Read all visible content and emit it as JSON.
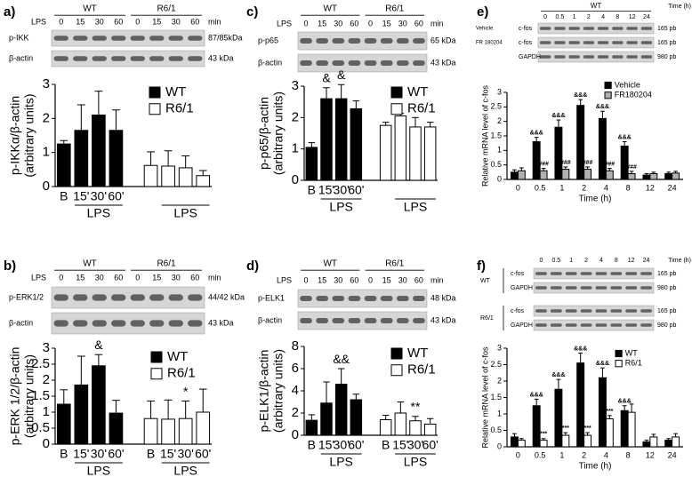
{
  "chart_data": [
    {
      "type": "bar",
      "panel": "a)",
      "blot": {
        "row_label": "LPS",
        "groups": [
          "WT",
          "R6/1"
        ],
        "times": [
          "0",
          "15",
          "30",
          "60",
          "0",
          "15",
          "30",
          "60"
        ],
        "time_unit": "min",
        "sets": [
          {
            "bands": [
              {
                "name": "p-IKK",
                "size": "87/85kDa"
              },
              {
                "name": "β-actin",
                "size": "43 kDa"
              }
            ]
          }
        ]
      },
      "ylabel": [
        "p-IKKα/β-actin",
        "(arbitrary units)"
      ],
      "categories": [
        "B",
        "15'",
        "30'",
        "60'",
        null,
        null,
        null,
        null
      ],
      "group_labels": [
        "LPS",
        "LPS"
      ],
      "ylim": [
        0,
        3
      ],
      "yticks": [
        0,
        1,
        2,
        3
      ],
      "series": [
        {
          "name": "WT",
          "color": "#000000",
          "values": [
            1.25,
            1.65,
            2.1,
            1.65,
            null,
            null,
            null,
            null
          ],
          "errors": [
            0.1,
            0.75,
            0.7,
            0.6,
            null,
            null,
            null,
            null
          ]
        },
        {
          "name": "R6/1",
          "color": "#ffffff",
          "values": [
            null,
            null,
            null,
            null,
            0.62,
            0.6,
            0.55,
            0.32
          ],
          "errors": [
            null,
            null,
            null,
            null,
            0.4,
            0.45,
            0.35,
            0.15
          ]
        }
      ]
    },
    {
      "type": "bar",
      "panel": "b)",
      "blot": {
        "row_label": "LPS",
        "groups": [
          "WT",
          "R6/1"
        ],
        "times": [
          "0",
          "15",
          "30",
          "60",
          "0",
          "15",
          "30",
          "60"
        ],
        "time_unit": "min",
        "sets": [
          {
            "bands": [
              {
                "name": "p-ERK1/2",
                "size": "44/42 kDa"
              },
              {
                "name": "β-actin",
                "size": "43 kDa"
              }
            ]
          }
        ]
      },
      "ylabel": [
        "p-ERK 1/2/β-actin",
        "(arbitrary units)"
      ],
      "categories": [
        "B",
        "15'",
        "30'",
        "60'",
        "B",
        "15'",
        "30'",
        "60'"
      ],
      "group_labels": [
        "LPS",
        "LPS"
      ],
      "ylim": [
        0,
        3
      ],
      "yticks": [
        0,
        0.5,
        1,
        1.5,
        2,
        2.5,
        3
      ],
      "series": [
        {
          "name": "WT",
          "color": "#000000",
          "values": [
            1.25,
            1.85,
            2.45,
            0.97,
            null,
            null,
            null,
            null
          ],
          "errors": [
            0.45,
            0.9,
            0.35,
            0.4,
            null,
            null,
            null,
            null
          ],
          "significance": [
            null,
            null,
            "&",
            null,
            null,
            null,
            null,
            null
          ]
        },
        {
          "name": "R6/1",
          "color": "#ffffff",
          "values": [
            null,
            null,
            null,
            null,
            0.8,
            0.78,
            0.8,
            1.0
          ],
          "errors": [
            null,
            null,
            null,
            null,
            0.55,
            0.6,
            0.55,
            0.72
          ],
          "significance": [
            null,
            null,
            null,
            null,
            null,
            null,
            "*",
            null
          ]
        }
      ]
    },
    {
      "type": "bar",
      "panel": "c)",
      "blot": {
        "row_label": "LPS",
        "groups": [
          "WT",
          "R6/1"
        ],
        "times": [
          "0",
          "15",
          "30",
          "60",
          "0",
          "15",
          "30",
          "60"
        ],
        "time_unit": "min",
        "sets": [
          {
            "bands": [
              {
                "name": "p-p65",
                "size": "65 kDa"
              },
              {
                "name": "β-actin",
                "size": "43 kDa"
              }
            ]
          }
        ]
      },
      "ylabel": [
        "p-p65/β-actin",
        "(arbitrary units)"
      ],
      "categories": [
        "B",
        "15'",
        "30'",
        "60'",
        null,
        null,
        null,
        null
      ],
      "group_labels": [
        "LPS",
        "LPS"
      ],
      "ylim": [
        0,
        3
      ],
      "yticks": [
        0,
        1,
        2,
        3
      ],
      "series": [
        {
          "name": "WT",
          "color": "#000000",
          "values": [
            1.05,
            2.6,
            2.6,
            2.28,
            null,
            null,
            null,
            null
          ],
          "errors": [
            0.15,
            0.35,
            0.45,
            0.25,
            null,
            null,
            null,
            null
          ],
          "significance": [
            null,
            "&",
            "&",
            null,
            null,
            null,
            null,
            null
          ]
        },
        {
          "name": "R6/1",
          "color": "#ffffff",
          "values": [
            null,
            null,
            null,
            null,
            1.75,
            2.05,
            1.7,
            1.7
          ],
          "errors": [
            null,
            null,
            null,
            null,
            0.1,
            0.08,
            0.3,
            0.15
          ]
        }
      ]
    },
    {
      "type": "bar",
      "panel": "d)",
      "blot": {
        "row_label": "LPS",
        "groups": [
          "WT",
          "R6/1"
        ],
        "times": [
          "0",
          "15",
          "30",
          "60",
          "0",
          "15",
          "30",
          "60"
        ],
        "time_unit": "min",
        "sets": [
          {
            "bands": [
              {
                "name": "p-ELK1",
                "size": "48 kDa"
              },
              {
                "name": "β-actin",
                "size": "43 kDa"
              }
            ]
          }
        ]
      },
      "ylabel": [
        "p-ELK1/β-actin",
        "(arbitrary units)"
      ],
      "categories": [
        "B",
        "15'",
        "30'",
        "60'",
        "B",
        "15'",
        "30'",
        "60'"
      ],
      "group_labels": [
        "LPS",
        "LPS"
      ],
      "ylim": [
        0,
        8
      ],
      "yticks": [
        0,
        2,
        4,
        6,
        8
      ],
      "series": [
        {
          "name": "WT",
          "color": "#000000",
          "values": [
            1.35,
            2.9,
            4.6,
            3.2,
            null,
            null,
            null,
            null
          ],
          "errors": [
            0.5,
            1.9,
            1.4,
            0.5,
            null,
            null,
            null,
            null
          ],
          "significance": [
            null,
            null,
            "&&",
            null,
            null,
            null,
            null,
            null
          ]
        },
        {
          "name": "R6/1",
          "color": "#ffffff",
          "values": [
            null,
            null,
            null,
            null,
            1.4,
            2.0,
            1.3,
            1.0
          ],
          "errors": [
            null,
            null,
            null,
            null,
            0.4,
            1.0,
            0.4,
            0.5
          ],
          "significance": [
            null,
            null,
            null,
            null,
            null,
            null,
            "**",
            null
          ]
        }
      ]
    },
    {
      "type": "bar",
      "panel": "e)",
      "blot": {
        "groups": [
          "WT"
        ],
        "times": [
          "0",
          "0.5",
          "1",
          "2",
          "4",
          "8",
          "12",
          "24"
        ],
        "time_unit": "Time (h)",
        "sets": [
          {
            "bands": [
              {
                "condition": "Vehicle",
                "name": "c-fos",
                "size": "165 pb"
              },
              {
                "condition": "FR 180204",
                "name": "c-fos",
                "size": "165 pb"
              },
              {
                "name": "GAPDH",
                "size": "980 pb"
              }
            ]
          }
        ]
      },
      "ylabel": "Relative mRNA level of c-fos",
      "xlabel": "Time (h)",
      "categories": [
        "0",
        "0.5",
        "1",
        "2",
        "4",
        "8",
        "12",
        "24"
      ],
      "ylim": [
        0,
        3
      ],
      "yticks": [
        0,
        0.5,
        1,
        1.5,
        2,
        2.5,
        3
      ],
      "series": [
        {
          "name": "Vehicle",
          "color": "#000000",
          "values": [
            0.25,
            1.3,
            1.8,
            2.55,
            2.1,
            1.15,
            0.15,
            0.2
          ],
          "errors": [
            0.08,
            0.15,
            0.25,
            0.2,
            0.25,
            0.15,
            0.05,
            0.05
          ],
          "significance": [
            null,
            "&&&",
            "&&&",
            "&&&",
            "&&&",
            "&&&",
            null,
            null
          ]
        },
        {
          "name": "FR180204",
          "color": "#b0b0b0",
          "values": [
            0.3,
            0.3,
            0.35,
            0.35,
            0.3,
            0.2,
            0.2,
            0.22
          ],
          "errors": [
            0.1,
            0.08,
            0.08,
            0.08,
            0.08,
            0.08,
            0.05,
            0.06
          ],
          "significance": [
            null,
            "###",
            "###",
            "###",
            "###",
            "###",
            null,
            null
          ]
        }
      ]
    },
    {
      "type": "bar",
      "panel": "f)",
      "blot": {
        "times": [
          "0",
          "0.5",
          "1",
          "2",
          "4",
          "8",
          "12",
          "24"
        ],
        "time_unit": "Time (h)",
        "sets": [
          {
            "name": "WT",
            "bands": [
              {
                "name": "c-fos",
                "size": "165 pb"
              },
              {
                "name": "GAPDH",
                "size": "980 pb"
              }
            ]
          },
          {
            "name": "R6/1",
            "bands": [
              {
                "name": "c-fos",
                "size": "165 pb"
              },
              {
                "name": "GAPDH",
                "size": "980 pb"
              }
            ]
          }
        ]
      },
      "ylabel": "Relative mRNA level of c-fos",
      "xlabel": "Time (h)",
      "categories": [
        "0",
        "0.5",
        "1",
        "2",
        "4",
        "8",
        "12",
        "24"
      ],
      "ylim": [
        0,
        3
      ],
      "yticks": [
        0,
        0.5,
        1,
        1.5,
        2,
        2.5,
        3
      ],
      "series": [
        {
          "name": "WT",
          "color": "#000000",
          "values": [
            0.3,
            1.25,
            1.75,
            2.55,
            2.1,
            1.1,
            0.15,
            0.2
          ],
          "errors": [
            0.1,
            0.2,
            0.3,
            0.3,
            0.3,
            0.15,
            0.05,
            0.05
          ],
          "significance": [
            null,
            "&&&",
            "&&&",
            "&&&",
            "&&&",
            "&&&",
            null,
            null
          ]
        },
        {
          "name": "R6/1",
          "color": "#ffffff",
          "values": [
            0.2,
            0.2,
            0.35,
            0.35,
            0.85,
            1.05,
            0.3,
            0.3
          ],
          "errors": [
            0.05,
            0.05,
            0.08,
            0.08,
            0.1,
            0.25,
            0.08,
            0.1
          ],
          "significance": [
            null,
            "***",
            "***",
            "***",
            "***",
            null,
            null,
            null
          ]
        }
      ]
    }
  ]
}
